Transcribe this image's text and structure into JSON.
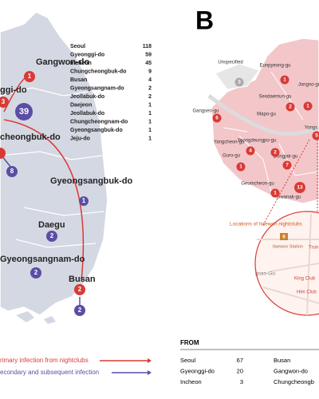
{
  "panel_a": {
    "regions": [
      "Gangwon-do",
      "ggi-do",
      "cheongbuk-do",
      "Gyeongsangbuk-do",
      "Daegu",
      "Gyeongsangnam-do",
      "Busan"
    ],
    "markers": [
      1,
      3,
      39,
      8,
      1,
      2,
      2,
      2,
      2
    ],
    "table": [
      [
        "Seoul",
        118
      ],
      [
        "Gyeonggi-do",
        59
      ],
      [
        "Incheon",
        45
      ],
      [
        "Chungcheongbuk-do",
        9
      ],
      [
        "Busan",
        4
      ],
      [
        "Gyeongsangnam-do",
        2
      ],
      [
        "Jeollabuk-do",
        2
      ],
      [
        "Daejeon",
        1
      ],
      [
        "Jeollabuk-do",
        1
      ],
      [
        "Chungcheongnam-do",
        1
      ],
      [
        "Gyeongsangbuk-do",
        1
      ],
      [
        "Jeju-do",
        1
      ]
    ],
    "legend": [
      "rimary infection from nightclubs",
      "econdary and subsequent infection"
    ]
  },
  "panel_b": {
    "label": "B",
    "districts": [
      "Unspecified",
      "Eunpyeong-gu",
      "Jongno-gu",
      "Seodaemun-gu",
      "Mapo-gu",
      "Gangseo-gu",
      "Yangcheon-gu",
      "Yeongdeungpo-gu",
      "Guro-gu",
      "Dongjak-gu",
      "Gwanak-gu",
      "Geumcheon-gu",
      "Yongs"
    ],
    "counts": [
      3,
      1,
      2,
      1,
      6,
      4,
      2,
      1,
      7,
      13,
      1,
      5
    ],
    "inset": {
      "title": "Locations of Itaewon nightclubs",
      "station_number": 6,
      "station": "Itaewon Station",
      "district": "gsan-Gu",
      "clubs": [
        "King Club",
        "Him Club",
        "Trun"
      ]
    },
    "table": {
      "header": "FROM",
      "rows": [
        [
          "Seoul",
          67,
          "Busan"
        ],
        [
          "Gyeonggi-do",
          20,
          "Gangwon-do"
        ],
        [
          "Incheon",
          3,
          "Chungcheongb"
        ]
      ]
    }
  }
}
